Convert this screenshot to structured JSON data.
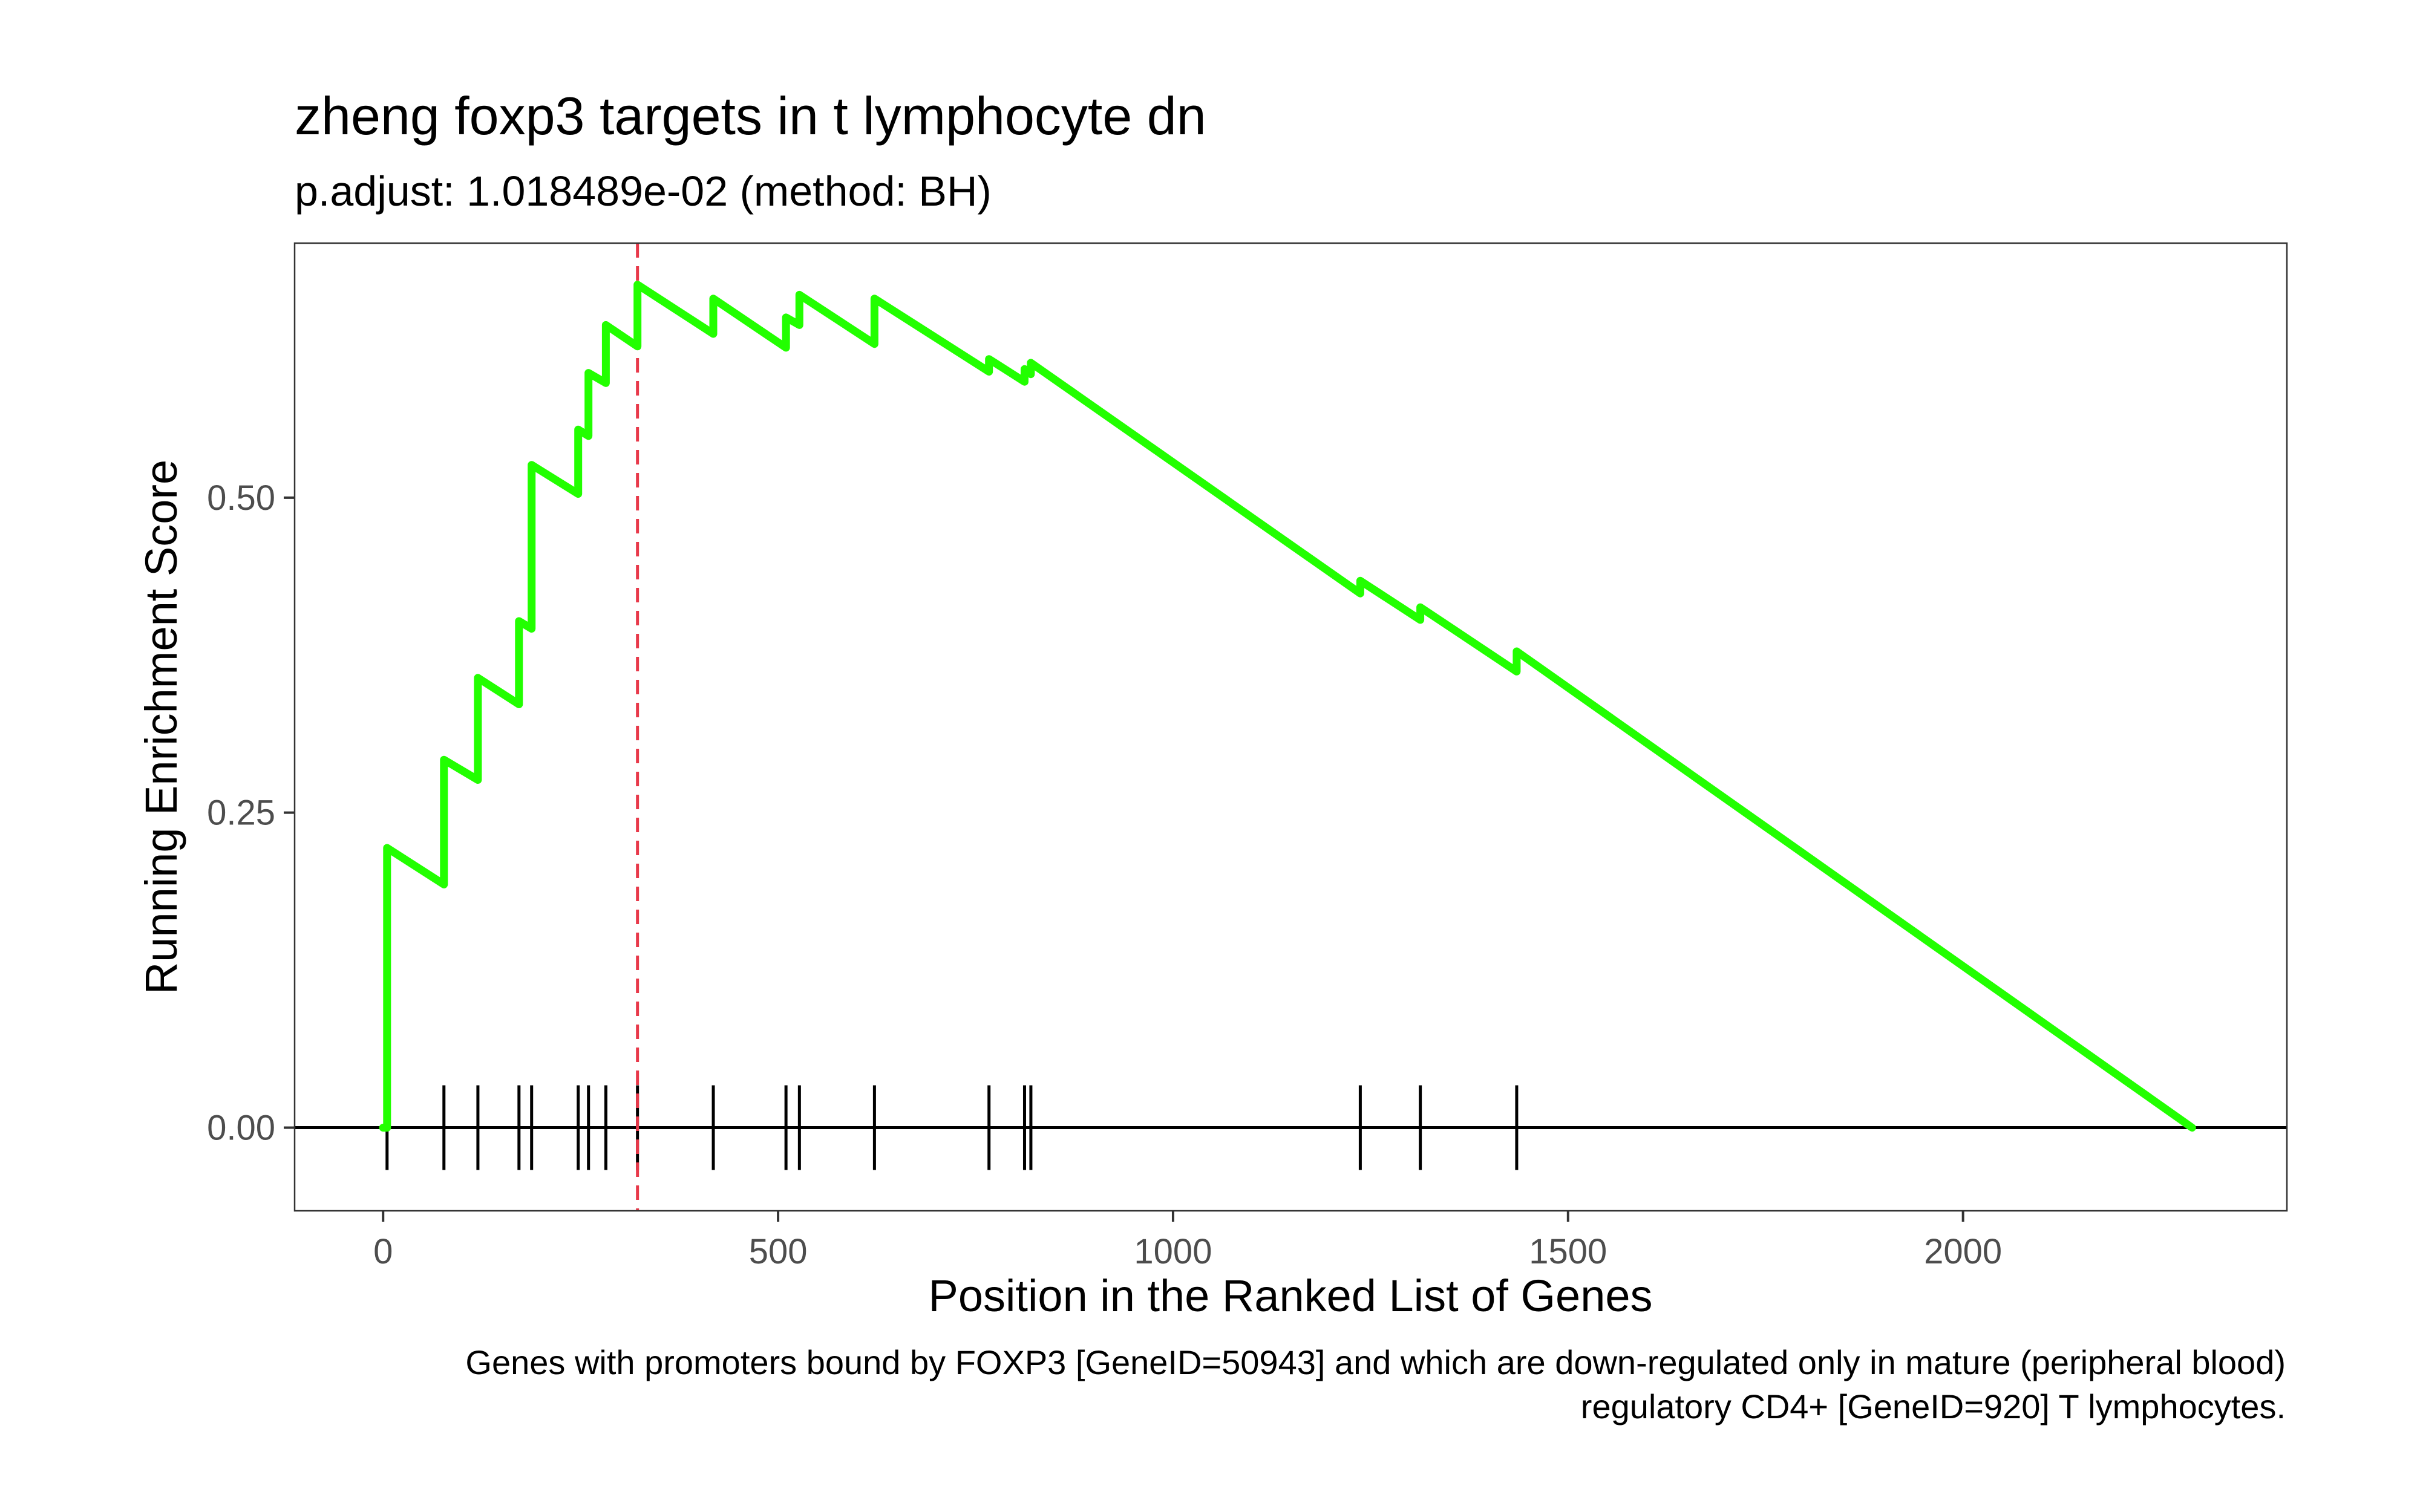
{
  "chart_data": {
    "type": "line",
    "title": "zheng foxp3 targets in t lymphocyte dn",
    "subtitle": "p.adjust: 1.018489e-02 (method: BH)",
    "xlabel": "Position in the Ranked List of Genes",
    "ylabel": "Running Enrichment Score",
    "caption_lines": [
      "Genes with promoters bound by FOXP3 [GeneID=50943] and which are down-regulated only in mature (peripheral blood)",
      "regulatory CD4+ [GeneID=920] T lymphocytes."
    ],
    "xlim": [
      -112,
      2410
    ],
    "ylim": [
      -0.066,
      0.702
    ],
    "x_ticks": [
      0,
      500,
      1000,
      1500,
      2000
    ],
    "x_tick_labels": [
      "0",
      "500",
      "1000",
      "1500",
      "2000"
    ],
    "y_ticks": [
      0.0,
      0.25,
      0.5
    ],
    "y_tick_labels": [
      "0.00",
      "0.25",
      "0.50"
    ],
    "hit_positions": [
      5,
      77,
      120,
      172,
      188,
      247,
      260,
      282,
      322,
      418,
      510,
      527,
      622,
      767,
      812,
      820,
      1237,
      1313,
      1435
    ],
    "max_position": 322,
    "series": [
      {
        "color": "#22ff00",
        "x": [
          0,
          5,
          5,
          77,
          77,
          120,
          120,
          172,
          172,
          188,
          188,
          247,
          247,
          260,
          260,
          282,
          282,
          322,
          322,
          418,
          418,
          510,
          510,
          527,
          527,
          622,
          622,
          767,
          767,
          812,
          812,
          820,
          820,
          1237,
          1237,
          1313,
          1313,
          1435,
          1435,
          2290
        ],
        "y": [
          0.0,
          0.0,
          0.222,
          0.193,
          0.292,
          0.276,
          0.357,
          0.336,
          0.402,
          0.396,
          0.526,
          0.503,
          0.554,
          0.549,
          0.599,
          0.591,
          0.637,
          0.62,
          0.669,
          0.63,
          0.658,
          0.619,
          0.643,
          0.637,
          0.661,
          0.622,
          0.658,
          0.6,
          0.61,
          0.592,
          0.602,
          0.598,
          0.607,
          0.424,
          0.434,
          0.403,
          0.413,
          0.362,
          0.378,
          0.0
        ]
      }
    ],
    "colors": {
      "line": "#22ff00",
      "max_line": "#e8394a",
      "ticks": "#000000",
      "panel_border": "#333333"
    }
  }
}
